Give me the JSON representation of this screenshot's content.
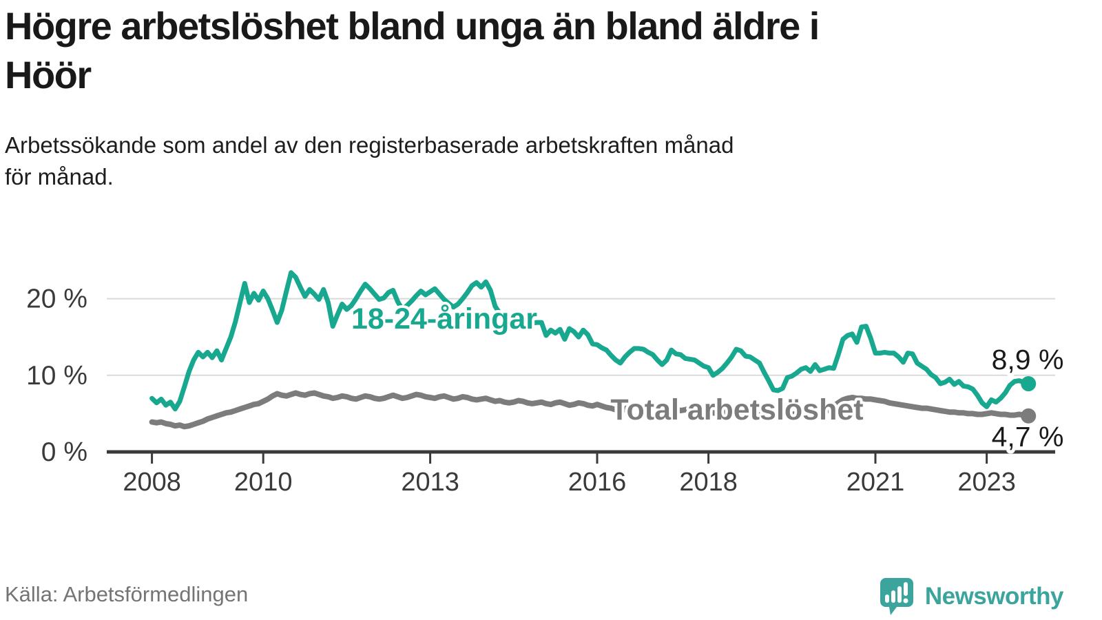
{
  "header": {
    "title": "Högre arbetslöshet bland unga än bland äldre i\nHöör",
    "subtitle": "Arbetssökande som andel av den registerbaserade arbetskraften månad\nför månad."
  },
  "footer": {
    "source": "Källa: Arbetsförmedlingen",
    "brand": "Newsworthy",
    "brand_color": "#3ba49c"
  },
  "chart_data": {
    "type": "line",
    "unit": "%",
    "frequency": "monthly",
    "x_start": "2008-01",
    "x_end": "2023-10",
    "ylim": [
      0,
      25
    ],
    "grid": "horizontal",
    "legend_position": "inline-labels",
    "colors": {
      "grid": "#d9d9d9",
      "axis": "#3a3a3a",
      "tick_label": "#3a3a3a",
      "value_label": "#1a1a1a",
      "halo": "#ffffff"
    },
    "x_ticks": [
      "2008",
      "2010",
      "2013",
      "2016",
      "2018",
      "2021",
      "2023"
    ],
    "y_ticks": [
      {
        "value": 0,
        "label": "0 %"
      },
      {
        "value": 10,
        "label": "10 %"
      },
      {
        "value": 20,
        "label": "20 %"
      }
    ],
    "y_gridlines": [
      10,
      20
    ],
    "series": [
      {
        "id": "total",
        "name": "Total arbetslöshet",
        "color": "#7c7c7c",
        "end_label": "4,7 %",
        "end_value": 4.7,
        "values": [
          3.9,
          3.8,
          3.9,
          3.7,
          3.6,
          3.4,
          3.5,
          3.3,
          3.4,
          3.6,
          3.8,
          4.0,
          4.3,
          4.5,
          4.7,
          4.9,
          5.1,
          5.2,
          5.4,
          5.6,
          5.8,
          6.0,
          6.2,
          6.3,
          6.6,
          6.9,
          7.3,
          7.6,
          7.4,
          7.3,
          7.5,
          7.7,
          7.5,
          7.4,
          7.6,
          7.7,
          7.5,
          7.3,
          7.2,
          7.0,
          7.1,
          7.3,
          7.2,
          7.0,
          6.9,
          7.1,
          7.3,
          7.2,
          7.0,
          6.9,
          7.0,
          7.2,
          7.4,
          7.2,
          7.0,
          7.1,
          7.3,
          7.5,
          7.4,
          7.2,
          7.1,
          7.0,
          7.2,
          7.3,
          7.1,
          6.9,
          7.0,
          7.2,
          7.1,
          6.9,
          6.8,
          6.9,
          7.0,
          6.8,
          6.6,
          6.7,
          6.5,
          6.4,
          6.5,
          6.7,
          6.6,
          6.4,
          6.3,
          6.4,
          6.5,
          6.3,
          6.2,
          6.4,
          6.5,
          6.3,
          6.1,
          6.2,
          6.4,
          6.3,
          6.1,
          6.0,
          6.2,
          6.0,
          5.8,
          5.7,
          5.5,
          5.2,
          5.6,
          5.9,
          6.1,
          5.9,
          5.7,
          5.8,
          5.9,
          5.7,
          5.5,
          5.6,
          5.8,
          5.6,
          5.4,
          5.5,
          5.7,
          5.5,
          5.3,
          5.2,
          5.3,
          5.1,
          5.0,
          5.1,
          5.2,
          5.0,
          4.9,
          5.0,
          5.1,
          5.0,
          4.9,
          4.8,
          4.9,
          4.8,
          4.7,
          4.8,
          4.9,
          4.8,
          4.9,
          5.0,
          5.1,
          5.0,
          4.9,
          5.0,
          5.1,
          5.2,
          5.5,
          6.0,
          6.4,
          6.8,
          7.0,
          7.1,
          7.0,
          7.0,
          6.9,
          6.9,
          6.8,
          6.7,
          6.6,
          6.4,
          6.3,
          6.2,
          6.1,
          6.0,
          5.9,
          5.8,
          5.7,
          5.7,
          5.6,
          5.5,
          5.4,
          5.3,
          5.2,
          5.2,
          5.1,
          5.1,
          5.0,
          5.0,
          4.9,
          4.9,
          5.0,
          5.1,
          5.0,
          4.9,
          4.9,
          4.8,
          4.8,
          4.9,
          4.8,
          4.7
        ]
      },
      {
        "id": "youth-18-24",
        "name": "18-24-åringar",
        "color": "#18a78f",
        "end_label": "8,9 %",
        "end_value": 8.9,
        "values": [
          7.0,
          6.4,
          6.9,
          6.1,
          6.5,
          5.6,
          6.6,
          8.5,
          10.5,
          12.0,
          13.0,
          12.4,
          13.0,
          12.3,
          13.2,
          12.0,
          13.5,
          15.0,
          17.0,
          19.5,
          22.0,
          19.5,
          20.7,
          19.8,
          21.0,
          20.0,
          18.5,
          16.9,
          18.5,
          21.0,
          23.4,
          22.8,
          21.5,
          20.3,
          21.2,
          20.6,
          19.9,
          21.2,
          19.5,
          16.4,
          17.9,
          19.3,
          18.6,
          19.1,
          20.0,
          21.0,
          21.9,
          21.3,
          20.6,
          19.9,
          20.1,
          20.8,
          21.1,
          19.6,
          18.6,
          19.1,
          19.7,
          20.4,
          21.0,
          20.5,
          20.9,
          21.3,
          20.6,
          19.9,
          19.4,
          18.9,
          19.3,
          20.0,
          20.8,
          21.7,
          22.1,
          21.5,
          22.2,
          21.1,
          19.0,
          18.1,
          17.6,
          17.1,
          16.7,
          17.0,
          17.4,
          17.1,
          16.8,
          16.9,
          16.9,
          15.2,
          15.9,
          15.5,
          16.0,
          14.7,
          16.1,
          15.7,
          15.0,
          15.9,
          15.3,
          14.1,
          14.0,
          13.6,
          13.3,
          12.6,
          12.0,
          11.6,
          12.4,
          13.0,
          13.5,
          13.5,
          13.4,
          13.0,
          12.7,
          12.0,
          11.4,
          12.0,
          13.3,
          12.8,
          12.7,
          12.2,
          12.1,
          12.0,
          11.6,
          11.2,
          11.0,
          10.0,
          10.4,
          10.9,
          11.6,
          12.4,
          13.4,
          13.2,
          12.5,
          12.4,
          12.0,
          11.6,
          10.4,
          9.3,
          8.1,
          8.0,
          8.3,
          9.7,
          9.9,
          10.3,
          10.8,
          11.0,
          10.5,
          11.4,
          10.6,
          10.8,
          11.0,
          10.9,
          12.7,
          14.7,
          15.2,
          15.4,
          14.3,
          16.3,
          16.4,
          14.8,
          12.9,
          12.9,
          13.0,
          12.9,
          12.9,
          12.4,
          11.7,
          12.9,
          12.8,
          11.6,
          11.2,
          10.8,
          10.1,
          9.7,
          8.9,
          9.1,
          9.5,
          8.8,
          9.2,
          8.6,
          8.5,
          8.2,
          7.4,
          6.4,
          5.9,
          6.8,
          6.5,
          7.0,
          7.7,
          8.7,
          9.2,
          9.3,
          9.1,
          8.9
        ]
      }
    ]
  }
}
